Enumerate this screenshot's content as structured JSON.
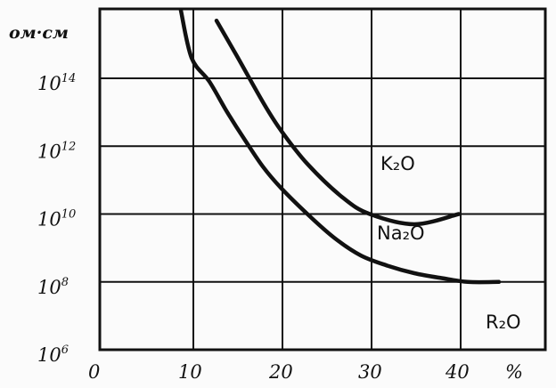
{
  "chart_data": {
    "type": "line",
    "ylabel": "ом·см",
    "xlabel": "%",
    "y_scale": "log",
    "x_ticks": [
      "0",
      "10",
      "20",
      "30",
      "40",
      "%"
    ],
    "y_ticks": [
      {
        "base": "10",
        "exp": "6",
        "value": 1000000.0
      },
      {
        "base": "10",
        "exp": "8",
        "value": 100000000.0
      },
      {
        "base": "10",
        "exp": "10",
        "value": 10000000000.0
      },
      {
        "base": "10",
        "exp": "12",
        "value": 1000000000000.0
      },
      {
        "base": "10",
        "exp": "14",
        "value": 100000000000000.0
      }
    ],
    "xlim": [
      0,
      48
    ],
    "ylim": [
      1000000.0,
      1e+16
    ],
    "grid": true,
    "annotation": "R₂O",
    "series": [
      {
        "name": "K₂O",
        "x": [
          12.8,
          15,
          18,
          20,
          23,
          27,
          30,
          35,
          40
        ],
        "y": [
          5000000000000000.0,
          500000000000000.0,
          20000000000000.0,
          3000000000000.0,
          300000000000.0,
          30000000000.0,
          10000000000.0,
          5000000000.0,
          10000000000.0
        ]
      },
      {
        "name": "Na₂O",
        "x": [
          8.8,
          10,
          12,
          14,
          16,
          18,
          20,
          23,
          26,
          29,
          32,
          35,
          38,
          41,
          44.5
        ],
        "y": [
          1e+16,
          400000000000000.0,
          80000000000000.0,
          10000000000000.0,
          1500000000000.0,
          250000000000.0,
          60000000000.0,
          10000000000.0,
          2000000000.0,
          600000000.0,
          300000000.0,
          180000000.0,
          130000000.0,
          100000000.0,
          100000000.0
        ]
      }
    ]
  }
}
